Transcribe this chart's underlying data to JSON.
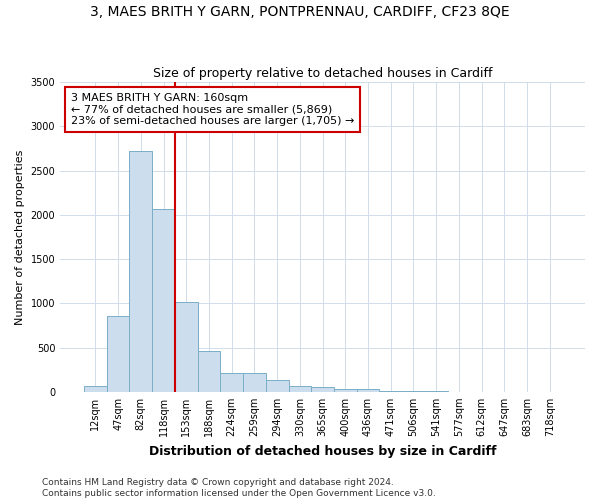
{
  "title": "3, MAES BRITH Y GARN, PONTPRENNAU, CARDIFF, CF23 8QE",
  "subtitle": "Size of property relative to detached houses in Cardiff",
  "xlabel": "Distribution of detached houses by size in Cardiff",
  "ylabel": "Number of detached properties",
  "categories": [
    "12sqm",
    "47sqm",
    "82sqm",
    "118sqm",
    "153sqm",
    "188sqm",
    "224sqm",
    "259sqm",
    "294sqm",
    "330sqm",
    "365sqm",
    "400sqm",
    "436sqm",
    "471sqm",
    "506sqm",
    "541sqm",
    "577sqm",
    "612sqm",
    "647sqm",
    "683sqm",
    "718sqm"
  ],
  "values": [
    60,
    855,
    2720,
    2060,
    1020,
    460,
    215,
    215,
    135,
    65,
    55,
    28,
    28,
    10,
    5,
    5,
    3,
    2,
    1,
    0,
    0
  ],
  "bar_color": "#ccdded",
  "bar_edge_color": "#7baec8",
  "vline_color": "#cc0000",
  "vline_x": 4.0,
  "annotation_text": "3 MAES BRITH Y GARN: 160sqm\n← 77% of detached houses are smaller (5,869)\n23% of semi-detached houses are larger (1,705) →",
  "annotation_box_facecolor": "white",
  "annotation_box_edgecolor": "#cc0000",
  "ylim": [
    0,
    3500
  ],
  "yticks": [
    0,
    500,
    1000,
    1500,
    2000,
    2500,
    3000,
    3500
  ],
  "footer_line1": "Contains HM Land Registry data © Crown copyright and database right 2024.",
  "footer_line2": "Contains public sector information licensed under the Open Government Licence v3.0.",
  "title_fontsize": 10,
  "subtitle_fontsize": 9,
  "xlabel_fontsize": 9,
  "ylabel_fontsize": 8,
  "tick_fontsize": 7,
  "annotation_fontsize": 8,
  "footer_fontsize": 6.5,
  "bg_color": "#ffffff",
  "plot_bg_color": "#ffffff",
  "grid_color": "#d0dce8"
}
